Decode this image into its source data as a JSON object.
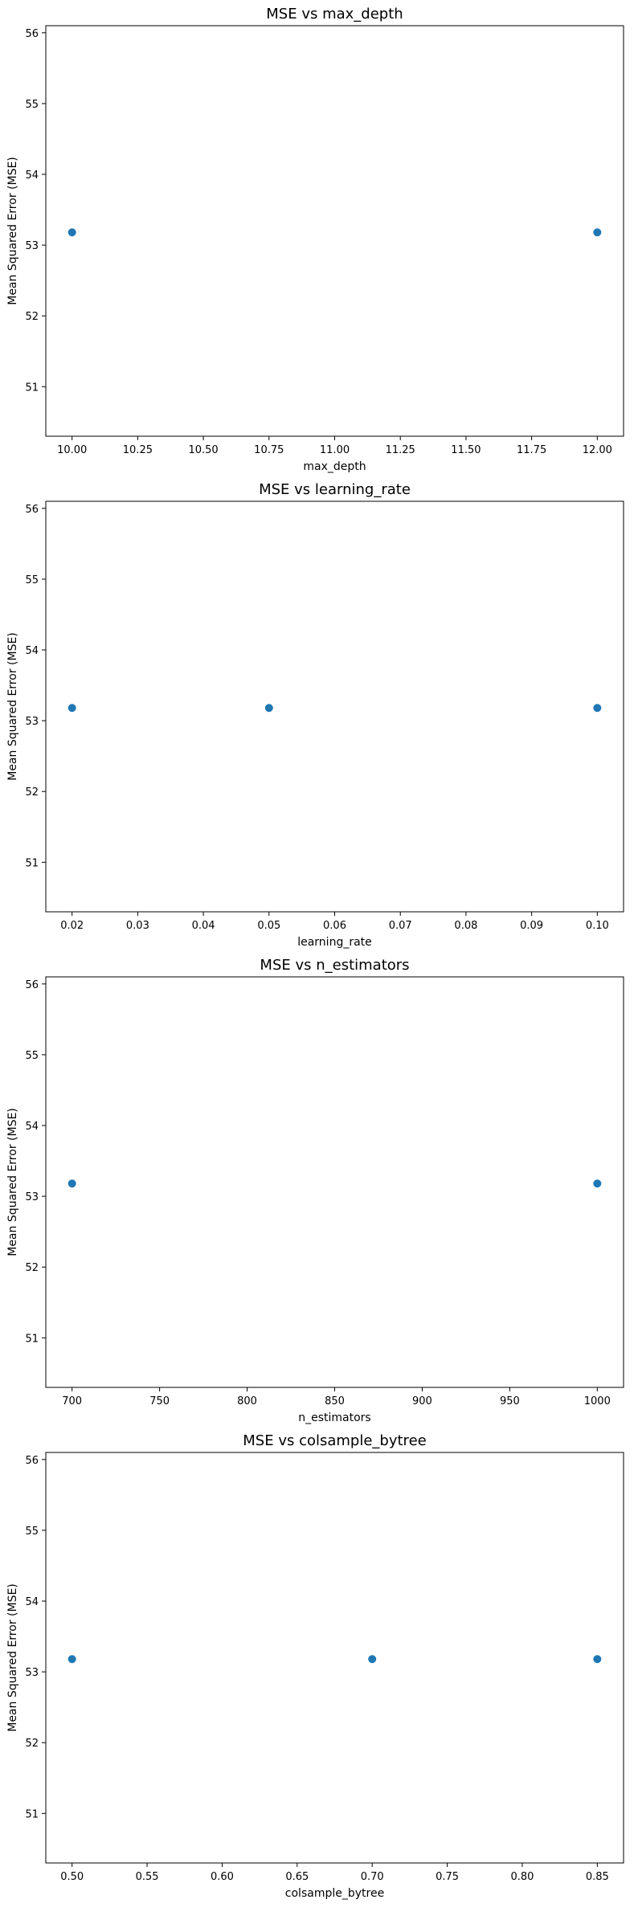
{
  "chart_data": [
    {
      "type": "scatter",
      "title": "MSE vs max_depth",
      "xlabel": "max_depth",
      "ylabel": "Mean Squared Error (MSE)",
      "xlim": [
        9.9,
        12.1
      ],
      "ylim": [
        50.3,
        56.1
      ],
      "xticks": [
        10.0,
        10.25,
        10.5,
        10.75,
        11.0,
        11.25,
        11.5,
        11.75,
        12.0
      ],
      "xtick_labels": [
        "10.00",
        "10.25",
        "10.50",
        "10.75",
        "11.00",
        "11.25",
        "11.50",
        "11.75",
        "12.00"
      ],
      "yticks": [
        51,
        52,
        53,
        54,
        55,
        56
      ],
      "ytick_labels": [
        "51",
        "52",
        "53",
        "54",
        "55",
        "56"
      ],
      "points": [
        {
          "x": 10,
          "y": 53.18
        },
        {
          "x": 12,
          "y": 53.18
        }
      ],
      "color": "#1f77b4",
      "grid": false
    },
    {
      "type": "scatter",
      "title": "MSE vs learning_rate",
      "xlabel": "learning_rate",
      "ylabel": "Mean Squared Error (MSE)",
      "xlim": [
        0.016,
        0.104
      ],
      "ylim": [
        50.3,
        56.1
      ],
      "xticks": [
        0.02,
        0.03,
        0.04,
        0.05,
        0.06,
        0.07,
        0.08,
        0.09,
        0.1
      ],
      "xtick_labels": [
        "0.02",
        "0.03",
        "0.04",
        "0.05",
        "0.06",
        "0.07",
        "0.08",
        "0.09",
        "0.10"
      ],
      "yticks": [
        51,
        52,
        53,
        54,
        55,
        56
      ],
      "ytick_labels": [
        "51",
        "52",
        "53",
        "54",
        "55",
        "56"
      ],
      "points": [
        {
          "x": 0.02,
          "y": 53.18
        },
        {
          "x": 0.05,
          "y": 53.18
        },
        {
          "x": 0.1,
          "y": 53.18
        }
      ],
      "color": "#1f77b4",
      "grid": false
    },
    {
      "type": "scatter",
      "title": "MSE vs n_estimators",
      "xlabel": "n_estimators",
      "ylabel": "Mean Squared Error (MSE)",
      "xlim": [
        685,
        1015
      ],
      "ylim": [
        50.3,
        56.1
      ],
      "xticks": [
        700,
        750,
        800,
        850,
        900,
        950,
        1000
      ],
      "xtick_labels": [
        "700",
        "750",
        "800",
        "850",
        "900",
        "950",
        "1000"
      ],
      "yticks": [
        51,
        52,
        53,
        54,
        55,
        56
      ],
      "ytick_labels": [
        "51",
        "52",
        "53",
        "54",
        "55",
        "56"
      ],
      "points": [
        {
          "x": 700,
          "y": 53.18
        },
        {
          "x": 1000,
          "y": 53.18
        }
      ],
      "color": "#1f77b4",
      "grid": false
    },
    {
      "type": "scatter",
      "title": "MSE vs colsample_bytree",
      "xlabel": "colsample_bytree",
      "ylabel": "Mean Squared Error (MSE)",
      "xlim": [
        0.4825,
        0.8675
      ],
      "ylim": [
        50.3,
        56.1
      ],
      "xticks": [
        0.5,
        0.55,
        0.6,
        0.65,
        0.7,
        0.75,
        0.8,
        0.85
      ],
      "xtick_labels": [
        "0.50",
        "0.55",
        "0.60",
        "0.65",
        "0.70",
        "0.75",
        "0.80",
        "0.85"
      ],
      "yticks": [
        51,
        52,
        53,
        54,
        55,
        56
      ],
      "ytick_labels": [
        "51",
        "52",
        "53",
        "54",
        "55",
        "56"
      ],
      "points": [
        {
          "x": 0.5,
          "y": 53.18
        },
        {
          "x": 0.7,
          "y": 53.18
        },
        {
          "x": 0.85,
          "y": 53.18
        }
      ],
      "color": "#1f77b4",
      "grid": false
    }
  ]
}
